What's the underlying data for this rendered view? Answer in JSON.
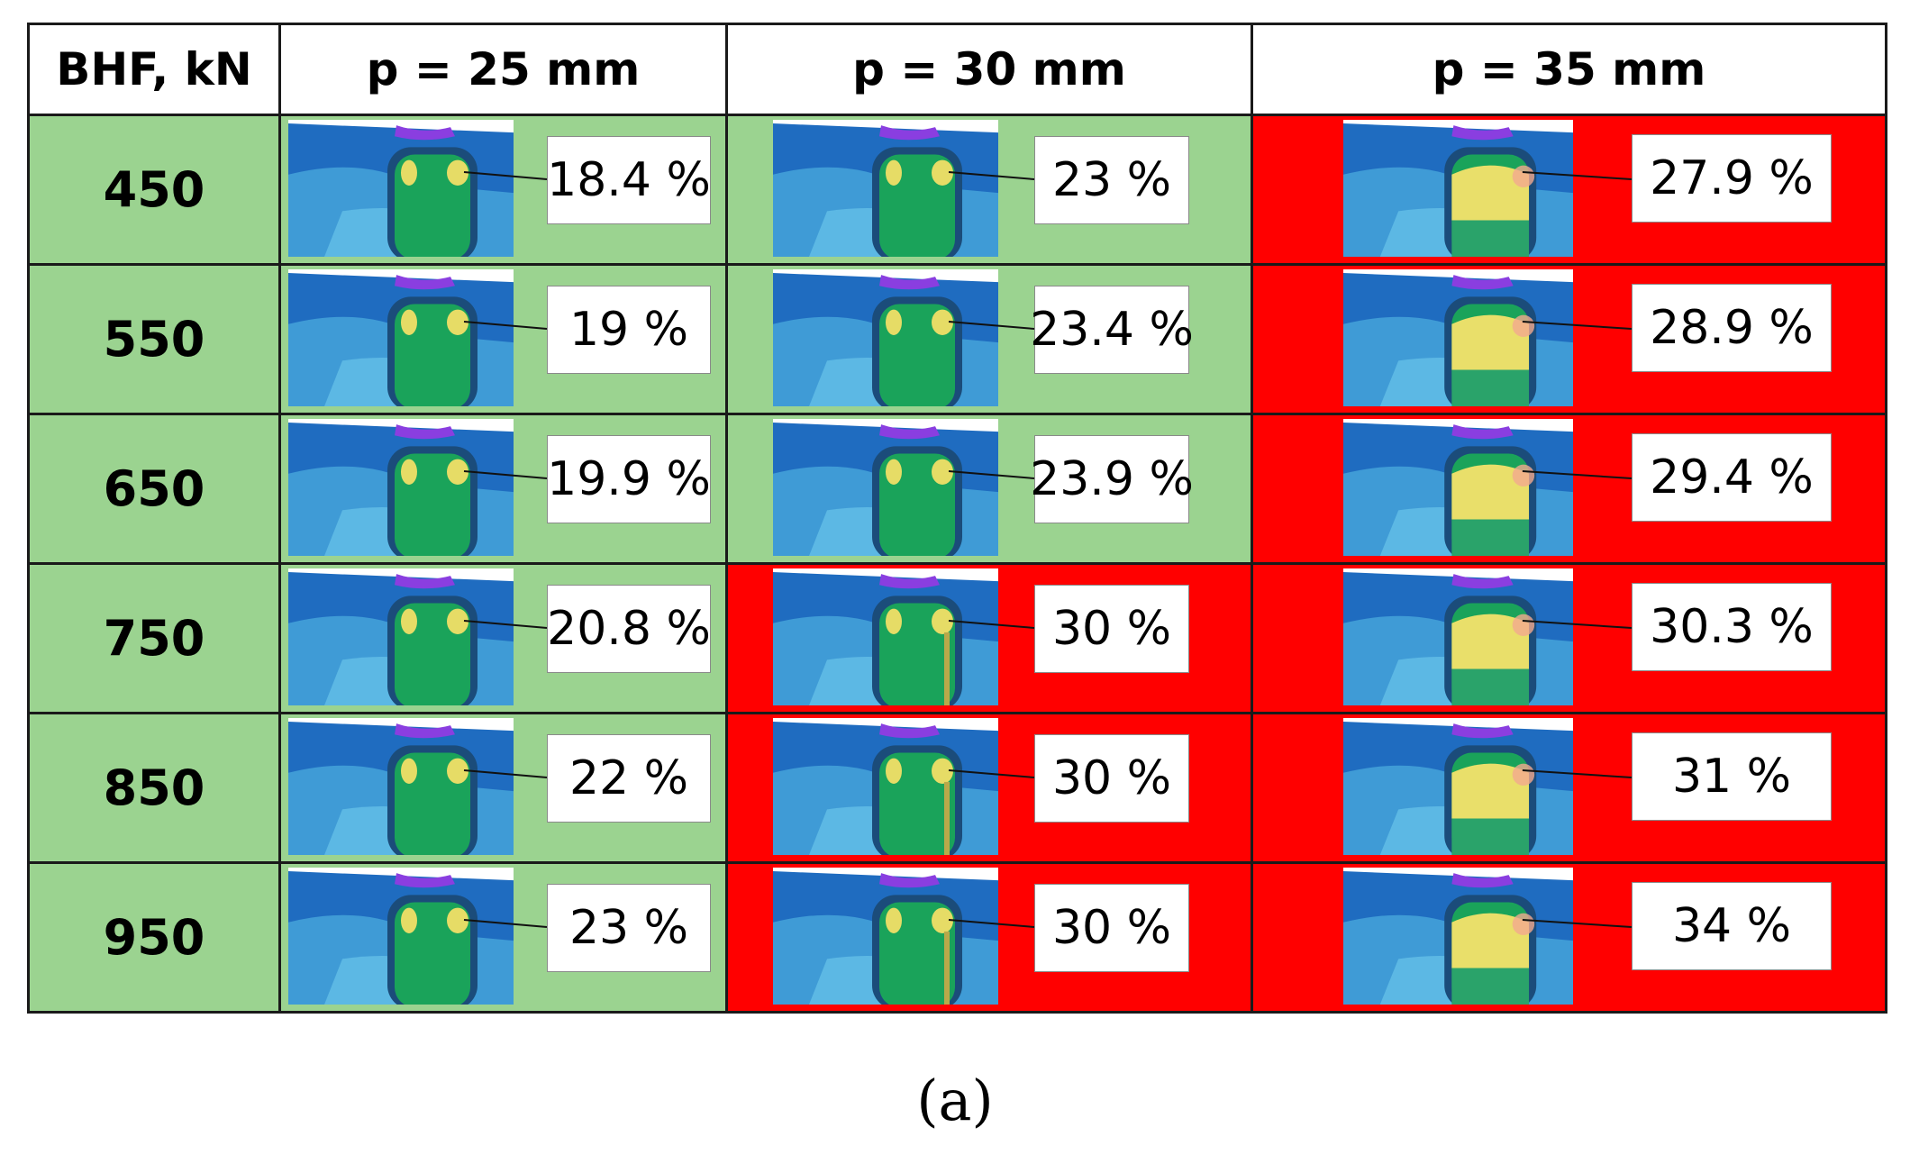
{
  "table": {
    "corner_header": "BHF, kN",
    "column_headers": [
      "p = 25 mm",
      "p = 30 mm",
      "p = 35 mm"
    ],
    "rows": [
      {
        "bhf": "450",
        "values": [
          "18.4 %",
          "23 %",
          "27.9 %"
        ],
        "status": [
          "green",
          "green",
          "red"
        ]
      },
      {
        "bhf": "550",
        "values": [
          "19 %",
          "23.4 %",
          "28.9 %"
        ],
        "status": [
          "green",
          "green",
          "red"
        ]
      },
      {
        "bhf": "650",
        "values": [
          "19.9 %",
          "23.9 %",
          "29.4 %"
        ],
        "status": [
          "green",
          "green",
          "red"
        ]
      },
      {
        "bhf": "750",
        "values": [
          "20.8 %",
          "30 %",
          "30.3 %"
        ],
        "status": [
          "green",
          "red",
          "red"
        ]
      },
      {
        "bhf": "850",
        "values": [
          "22 %",
          "30 %",
          "31 %"
        ],
        "status": [
          "green",
          "red",
          "red"
        ]
      },
      {
        "bhf": "950",
        "values": [
          "23 %",
          "30 %",
          "34 %"
        ],
        "status": [
          "green",
          "red",
          "red"
        ]
      }
    ]
  },
  "colors": {
    "accept": "#9bd390",
    "reject": "#ff0000"
  },
  "caption": "(a)"
}
